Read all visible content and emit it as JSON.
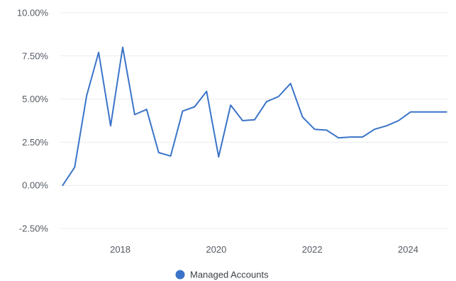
{
  "chart_data": {
    "type": "line",
    "title": "",
    "xlabel": "",
    "ylabel": "",
    "y_ticks": [
      "10.00%",
      "7.50%",
      "5.00%",
      "2.50%",
      "0.00%",
      "-2.50%"
    ],
    "x_ticks": [
      "2018",
      "2020",
      "2022",
      "2024"
    ],
    "xlim": [
      2016.75,
      2024.85
    ],
    "ylim": [
      -2.5,
      10.0
    ],
    "grid": true,
    "legend_position": "bottom-center",
    "series": [
      {
        "name": "Managed Accounts",
        "color": "#3a74c8",
        "x": [
          2016.8,
          2017.05,
          2017.3,
          2017.55,
          2017.8,
          2018.05,
          2018.3,
          2018.55,
          2018.8,
          2019.05,
          2019.3,
          2019.55,
          2019.8,
          2020.05,
          2020.3,
          2020.55,
          2020.8,
          2021.05,
          2021.3,
          2021.55,
          2021.8,
          2022.05,
          2022.3,
          2022.55,
          2022.8,
          2023.05,
          2023.3,
          2023.55,
          2023.8,
          2024.05,
          2024.3,
          2024.55,
          2024.8
        ],
        "values": [
          0.0,
          1.05,
          5.2,
          7.7,
          3.45,
          8.0,
          4.1,
          4.4,
          1.9,
          1.7,
          4.3,
          4.55,
          5.45,
          1.65,
          4.65,
          3.75,
          3.8,
          4.85,
          5.15,
          5.9,
          3.95,
          3.25,
          3.2,
          2.75,
          2.8,
          2.8,
          3.25,
          3.45,
          3.75,
          4.25,
          4.25,
          4.25,
          4.25
        ]
      }
    ]
  }
}
